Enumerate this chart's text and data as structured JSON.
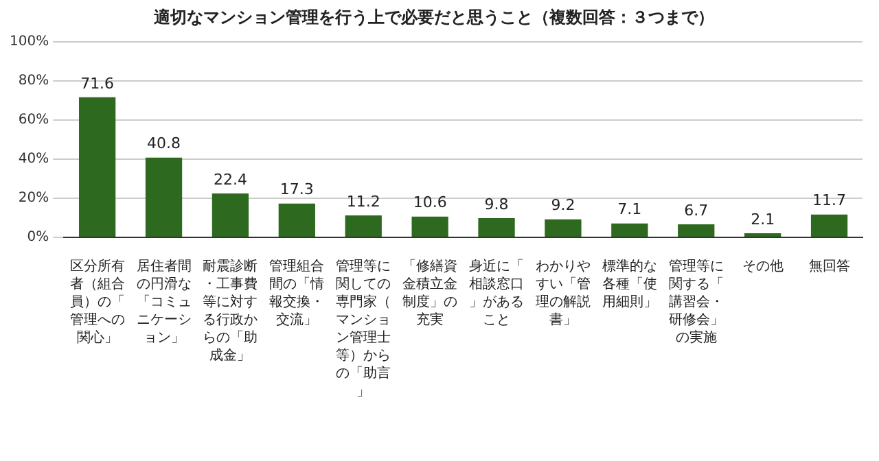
{
  "chart_data": {
    "type": "bar",
    "title": "適切なマンション管理を行う上で必要だと思うこと（複数回答：３つまで）",
    "categories": [
      "区分所有者（組合員）の「管理への関心」",
      "居住者間の円滑な「コミュニケーション」",
      "耐震診断・工事費等に対する行政からの「助成金」",
      "管理組合間の「情報交換・交流」",
      "管理等に関しての専門家（マンション管理士等）からの「助言」",
      "「修繕資金積立金制度」の充実",
      "身近に「相談窓口」があること",
      "わかりやすい「管理の解説書」",
      "標準的な各種「使用細則」",
      "管理等に関する「講習会・研修会」の実施",
      "その他",
      "無回答"
    ],
    "values": [
      71.6,
      40.8,
      22.4,
      17.3,
      11.2,
      10.6,
      9.8,
      9.2,
      7.1,
      6.7,
      2.1,
      11.7
    ],
    "color": "#2d6a1f",
    "ylim": [
      0,
      100
    ],
    "yticks": [
      {
        "value": 0,
        "label": "0%"
      },
      {
        "value": 20,
        "label": "20%"
      },
      {
        "value": 40,
        "label": "40%"
      },
      {
        "value": 60,
        "label": "60%"
      },
      {
        "value": 80,
        "label": "80%"
      },
      {
        "value": 100,
        "label": "100%"
      }
    ],
    "grid": "y",
    "legend": false,
    "data_labels": true
  }
}
